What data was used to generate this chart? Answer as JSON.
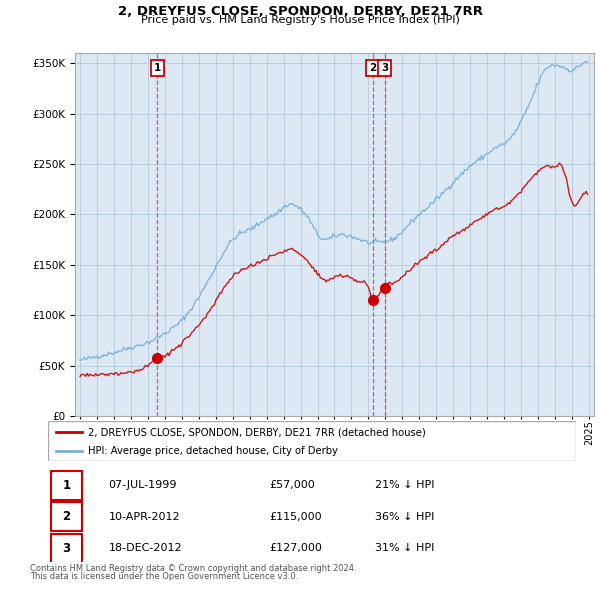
{
  "title": "2, DREYFUS CLOSE, SPONDON, DERBY, DE21 7RR",
  "subtitle": "Price paid vs. HM Land Registry's House Price Index (HPI)",
  "legend_line1": "2, DREYFUS CLOSE, SPONDON, DERBY, DE21 7RR (detached house)",
  "legend_line2": "HPI: Average price, detached house, City of Derby",
  "transactions": [
    {
      "num": 1,
      "date": "07-JUL-1999",
      "price": "£57,000",
      "hpi": "21% ↓ HPI",
      "x_year": 1999.54,
      "y_price": 57000
    },
    {
      "num": 2,
      "date": "10-APR-2012",
      "price": "£115,000",
      "hpi": "36% ↓ HPI",
      "x_year": 2012.27,
      "y_price": 115000
    },
    {
      "num": 3,
      "date": "18-DEC-2012",
      "price": "£127,000",
      "hpi": "31% ↓ HPI",
      "x_year": 2012.96,
      "y_price": 127000
    }
  ],
  "footnote1": "Contains HM Land Registry data © Crown copyright and database right 2024.",
  "footnote2": "This data is licensed under the Open Government Licence v3.0.",
  "ylim": [
    0,
    360000
  ],
  "xlim_start": 1994.7,
  "xlim_end": 2025.3,
  "red_color": "#cc0000",
  "blue_color": "#7aafd4",
  "chart_bg": "#dce9f5",
  "background_color": "#ffffff",
  "grid_color": "#b8cfe0"
}
